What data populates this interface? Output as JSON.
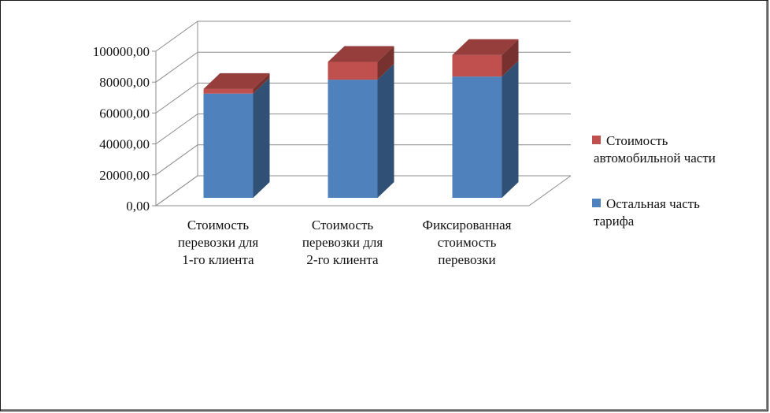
{
  "chart_data": {
    "type": "bar",
    "stacked": true,
    "three_d": true,
    "categories": [
      [
        "Стоимость",
        "перевозки для",
        "1-го клиента"
      ],
      [
        "Стоимость",
        "перевозки для",
        "2-го клиента"
      ],
      [
        "Фиксированная",
        "стоимость",
        "перевозки"
      ]
    ],
    "series": [
      {
        "name": "Остальная часть тарифа",
        "lines": [
          "Остальная часть",
          "тарифа"
        ],
        "color": "#4F81BD",
        "values": [
          67500,
          76500,
          78500
        ]
      },
      {
        "name": "Стоимость автомобильной части",
        "lines": [
          "Стоимость",
          "автомобильной части"
        ],
        "color": "#C0504D",
        "values": [
          3000,
          11500,
          14000
        ]
      }
    ],
    "y_ticks": [
      "0,00",
      "20000,00",
      "40000,00",
      "60000,00",
      "80000,00",
      "100000,00"
    ],
    "ylim": [
      0,
      100000
    ],
    "grid": true,
    "legend_position": "right"
  }
}
